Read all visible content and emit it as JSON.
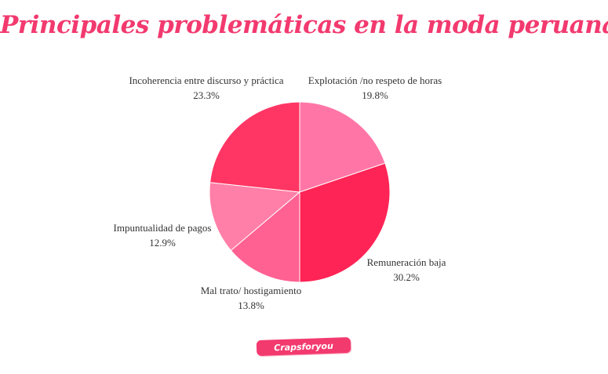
{
  "chart_data": {
    "type": "pie",
    "title": "Principales problemáticas en la moda peruana",
    "start_angle_deg": 90,
    "direction": "clockwise",
    "slices": [
      {
        "label": "Explotación /no respeto de horas",
        "value": 19.8,
        "display": "19.8%",
        "color": "#ff76a6"
      },
      {
        "label": "Remuneración baja",
        "value": 30.2,
        "display": "30.2%",
        "color": "#ff2456"
      },
      {
        "label": "Mal trato/ hostigamiento",
        "value": 13.8,
        "display": "13.8%",
        "color": "#ff6193"
      },
      {
        "label": "Impuntualidad de pagos",
        "value": 12.9,
        "display": "12.9%",
        "color": "#ff7fa8"
      },
      {
        "label": "Incoherencia entre discurso y práctica",
        "value": 23.3,
        "display": "23.3%",
        "color": "#ff3563"
      }
    ]
  },
  "brand": {
    "text": "Crapsforyou"
  }
}
